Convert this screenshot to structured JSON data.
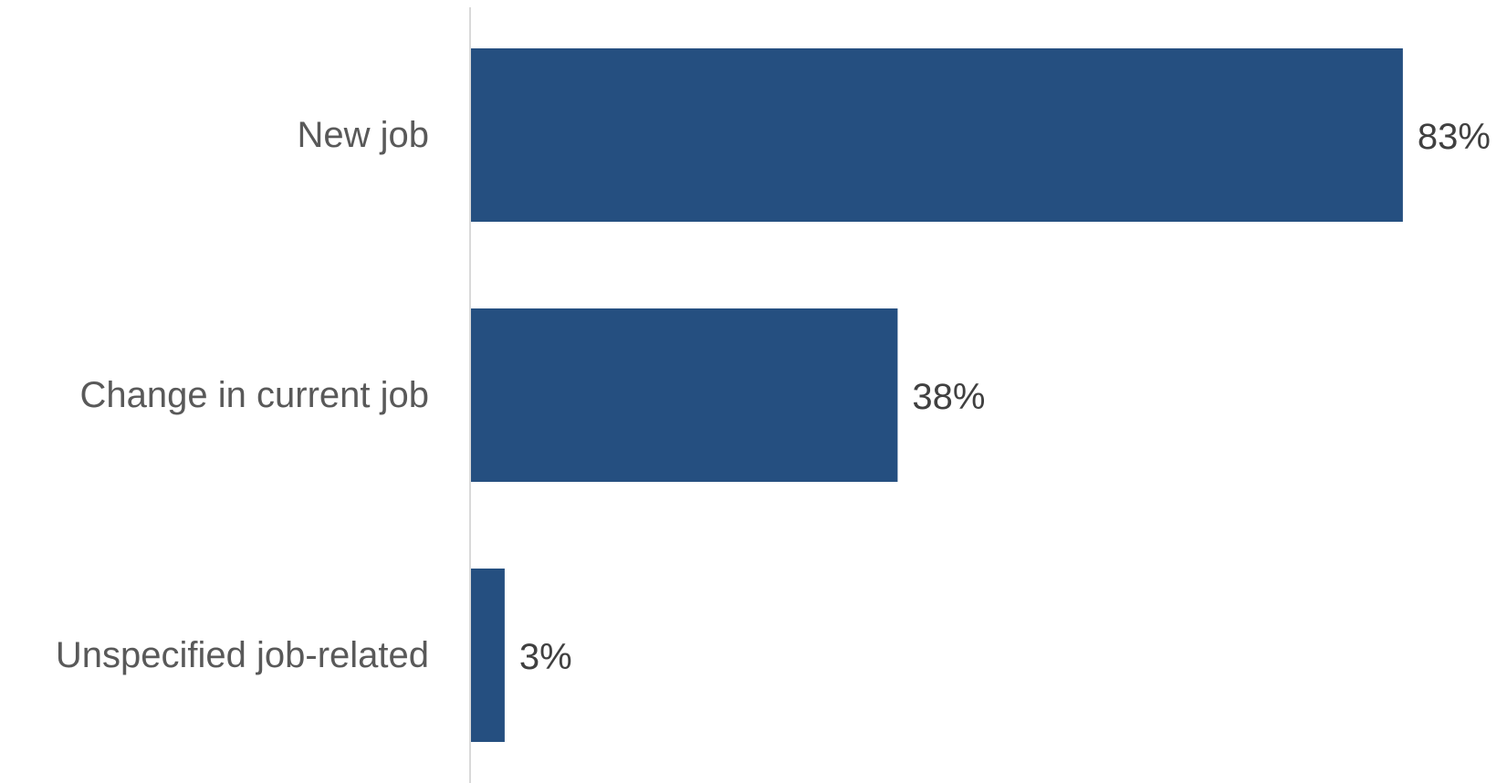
{
  "chart_data": {
    "type": "bar",
    "orientation": "horizontal",
    "categories": [
      "New job",
      "Change in current job",
      "Unspecified job-related"
    ],
    "values": [
      83,
      38,
      3
    ],
    "value_labels": [
      "83%",
      "38%",
      "3%"
    ],
    "unit": "%",
    "xlim": [
      0,
      100
    ],
    "grid": false,
    "legend": "none",
    "colors": {
      "bar": "#254F80",
      "axis": "#D9D9D9"
    }
  }
}
